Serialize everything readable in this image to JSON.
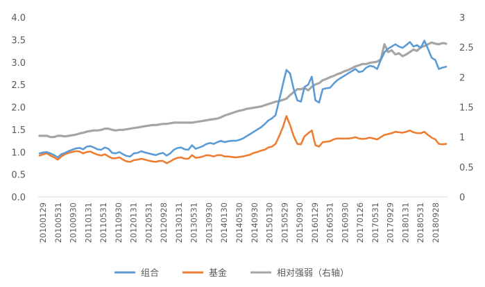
{
  "chart_data": {
    "type": "line",
    "title": "",
    "xlabel": "",
    "ylabel": "",
    "y_left": {
      "min": 0,
      "max": 4,
      "ticks": [
        "0.0",
        "0.5",
        "1.0",
        "1.5",
        "2.0",
        "2.5",
        "3.0",
        "3.5",
        "4.0"
      ]
    },
    "y_right": {
      "min": 0,
      "max": 3,
      "ticks": [
        "0",
        "0.5",
        "1",
        "1.5",
        "2",
        "2.5",
        "3"
      ]
    },
    "x_tick_labels": [
      "20100129",
      "20100531",
      "20100930",
      "20110131",
      "20110531",
      "20110930",
      "20120131",
      "20120531",
      "20120928",
      "20130131",
      "20130531",
      "20130930",
      "20140130",
      "20140530",
      "20140930",
      "20150130",
      "20150529",
      "20150930",
      "20160129",
      "20160531",
      "20160930",
      "20170126",
      "20170531",
      "20170929",
      "20180131",
      "20180531",
      "20180928"
    ],
    "grid": false,
    "legend_position": "bottom",
    "series": [
      {
        "name": "组合",
        "axis": "left",
        "color": "#5B9BD5",
        "values": [
          0.97,
          0.99,
          1.0,
          0.97,
          0.93,
          0.88,
          0.95,
          0.98,
          1.02,
          1.05,
          1.08,
          1.09,
          1.06,
          1.12,
          1.13,
          1.1,
          1.06,
          1.05,
          1.1,
          1.07,
          0.98,
          0.97,
          1.0,
          0.95,
          0.91,
          0.9,
          0.97,
          0.98,
          1.02,
          0.99,
          0.97,
          0.95,
          0.93,
          0.96,
          0.98,
          0.92,
          0.97,
          1.05,
          1.09,
          1.1,
          1.06,
          1.05,
          1.15,
          1.07,
          1.1,
          1.13,
          1.18,
          1.2,
          1.18,
          1.22,
          1.25,
          1.22,
          1.24,
          1.25,
          1.25,
          1.27,
          1.3,
          1.35,
          1.4,
          1.45,
          1.5,
          1.55,
          1.62,
          1.7,
          1.75,
          1.82,
          2.15,
          2.5,
          2.83,
          2.75,
          2.4,
          2.15,
          2.12,
          2.45,
          2.5,
          2.68,
          2.15,
          2.1,
          2.4,
          2.42,
          2.43,
          2.52,
          2.6,
          2.65,
          2.7,
          2.75,
          2.8,
          2.85,
          2.78,
          2.8,
          2.88,
          2.92,
          2.9,
          2.85,
          3.05,
          3.22,
          3.3,
          3.35,
          3.4,
          3.35,
          3.32,
          3.38,
          3.45,
          3.35,
          3.38,
          3.32,
          3.48,
          3.3,
          3.1,
          3.05,
          2.85,
          2.88,
          2.9
        ]
      },
      {
        "name": "基金",
        "axis": "left",
        "color": "#ED7D31",
        "values": [
          0.92,
          0.95,
          0.97,
          0.92,
          0.88,
          0.83,
          0.9,
          0.95,
          0.98,
          1.0,
          1.02,
          1.01,
          0.97,
          1.0,
          1.01,
          0.97,
          0.94,
          0.92,
          0.95,
          0.9,
          0.86,
          0.86,
          0.88,
          0.83,
          0.79,
          0.78,
          0.82,
          0.83,
          0.85,
          0.83,
          0.81,
          0.79,
          0.78,
          0.8,
          0.8,
          0.75,
          0.79,
          0.84,
          0.87,
          0.88,
          0.85,
          0.85,
          0.93,
          0.87,
          0.88,
          0.9,
          0.93,
          0.92,
          0.9,
          0.93,
          0.93,
          0.9,
          0.9,
          0.89,
          0.88,
          0.89,
          0.9,
          0.92,
          0.94,
          0.98,
          1.0,
          1.03,
          1.05,
          1.1,
          1.12,
          1.18,
          1.35,
          1.55,
          1.8,
          1.6,
          1.35,
          1.18,
          1.17,
          1.35,
          1.42,
          1.48,
          1.15,
          1.12,
          1.22,
          1.23,
          1.24,
          1.28,
          1.3,
          1.3,
          1.3,
          1.3,
          1.31,
          1.33,
          1.3,
          1.29,
          1.3,
          1.32,
          1.3,
          1.28,
          1.33,
          1.38,
          1.4,
          1.42,
          1.45,
          1.44,
          1.43,
          1.45,
          1.48,
          1.44,
          1.42,
          1.42,
          1.45,
          1.38,
          1.32,
          1.28,
          1.18,
          1.17,
          1.18
        ]
      },
      {
        "name": "相对强弱（右轴）",
        "axis": "right",
        "color": "#A5A5A5",
        "values": [
          1.02,
          1.02,
          1.02,
          1.0,
          1.0,
          1.02,
          1.02,
          1.01,
          1.02,
          1.03,
          1.04,
          1.06,
          1.07,
          1.09,
          1.1,
          1.11,
          1.11,
          1.12,
          1.14,
          1.14,
          1.12,
          1.11,
          1.12,
          1.12,
          1.13,
          1.14,
          1.15,
          1.16,
          1.17,
          1.18,
          1.19,
          1.2,
          1.2,
          1.21,
          1.22,
          1.22,
          1.23,
          1.24,
          1.24,
          1.24,
          1.24,
          1.24,
          1.24,
          1.25,
          1.26,
          1.27,
          1.28,
          1.29,
          1.3,
          1.31,
          1.33,
          1.36,
          1.38,
          1.4,
          1.42,
          1.44,
          1.45,
          1.47,
          1.48,
          1.49,
          1.5,
          1.51,
          1.53,
          1.55,
          1.57,
          1.59,
          1.6,
          1.62,
          1.64,
          1.7,
          1.75,
          1.8,
          1.8,
          1.82,
          1.78,
          1.84,
          1.88,
          1.9,
          1.95,
          1.97,
          2.0,
          2.02,
          2.05,
          2.07,
          2.1,
          2.12,
          2.15,
          2.18,
          2.2,
          2.22,
          2.22,
          2.24,
          2.25,
          2.26,
          2.3,
          2.55,
          2.42,
          2.45,
          2.38,
          2.4,
          2.35,
          2.38,
          2.42,
          2.46,
          2.44,
          2.5,
          2.52,
          2.55,
          2.58,
          2.56,
          2.55,
          2.57,
          2.56
        ]
      }
    ]
  }
}
